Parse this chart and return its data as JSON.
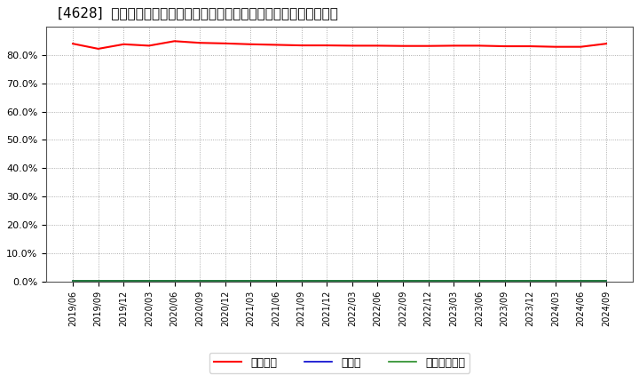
{
  "title": "[4628]  自己資本、のれん、繰延税金資産の総資産に対する比率の推移",
  "x_labels": [
    "2019/06",
    "2019/09",
    "2019/12",
    "2020/03",
    "2020/06",
    "2020/09",
    "2020/12",
    "2021/03",
    "2021/06",
    "2021/09",
    "2021/12",
    "2022/03",
    "2022/06",
    "2022/09",
    "2022/12",
    "2023/03",
    "2023/06",
    "2023/09",
    "2023/12",
    "2024/03",
    "2024/06",
    "2024/09"
  ],
  "jiko_shihon": [
    0.84,
    0.822,
    0.838,
    0.833,
    0.849,
    0.843,
    0.841,
    0.838,
    0.836,
    0.834,
    0.834,
    0.833,
    0.833,
    0.832,
    0.832,
    0.833,
    0.833,
    0.831,
    0.831,
    0.829,
    0.829,
    0.84
  ],
  "noren": [
    0.001,
    0.001,
    0.001,
    0.001,
    0.001,
    0.001,
    0.001,
    0.001,
    0.001,
    0.001,
    0.001,
    0.001,
    0.001,
    0.001,
    0.001,
    0.001,
    0.001,
    0.001,
    0.001,
    0.001,
    0.001,
    0.001
  ],
  "kurinobe_zeikin": [
    0.004,
    0.004,
    0.004,
    0.004,
    0.004,
    0.004,
    0.004,
    0.004,
    0.004,
    0.004,
    0.004,
    0.004,
    0.004,
    0.004,
    0.004,
    0.004,
    0.004,
    0.004,
    0.004,
    0.004,
    0.004,
    0.004
  ],
  "jiko_color": "#ff0000",
  "noren_color": "#0000cd",
  "kurinobe_color": "#228b22",
  "background_color": "#ffffff",
  "plot_bg_color": "#ffffff",
  "grid_color": "#999999",
  "ylim": [
    0.0,
    0.9
  ],
  "yticks": [
    0.0,
    0.1,
    0.2,
    0.3,
    0.4,
    0.5,
    0.6,
    0.7,
    0.8
  ],
  "legend_labels": [
    "自己資本",
    "のれん",
    "繰延税金資産"
  ],
  "title_fontsize": 11,
  "tick_fontsize": 7,
  "legend_fontsize": 9
}
